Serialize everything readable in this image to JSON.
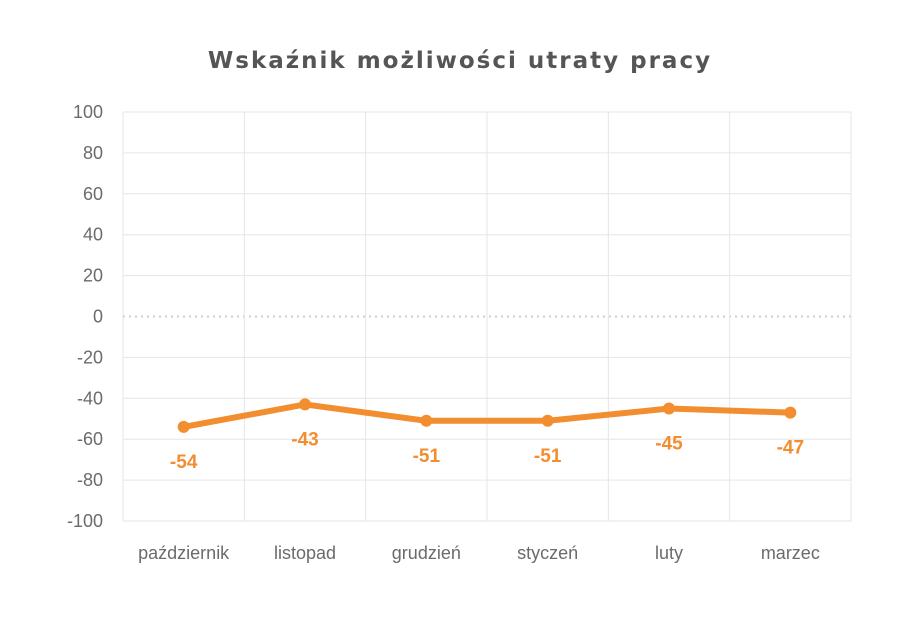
{
  "chart_data": {
    "type": "line",
    "title": "Wskaźnik możliwości utraty pracy",
    "xlabel": "",
    "ylabel": "",
    "categories": [
      "październik",
      "listopad",
      "grudzień",
      "styczeń",
      "luty",
      "marzec"
    ],
    "series": [
      {
        "values": [
          -54,
          -43,
          -51,
          -51,
          -45,
          -47
        ]
      }
    ],
    "ylim": [
      -100,
      100
    ],
    "yticks": [
      100,
      80,
      60,
      40,
      20,
      0,
      -20,
      -40,
      -60,
      -80,
      -100
    ],
    "grid": true,
    "zero_line": "dotted",
    "colors": {
      "line": "#f28e30",
      "grid": "#e6e6e6",
      "zero": "#cccccc",
      "label": "#f28e30"
    },
    "data_labels": [
      "-54",
      "-43",
      "-51",
      "-51",
      "-45",
      "-47"
    ]
  }
}
